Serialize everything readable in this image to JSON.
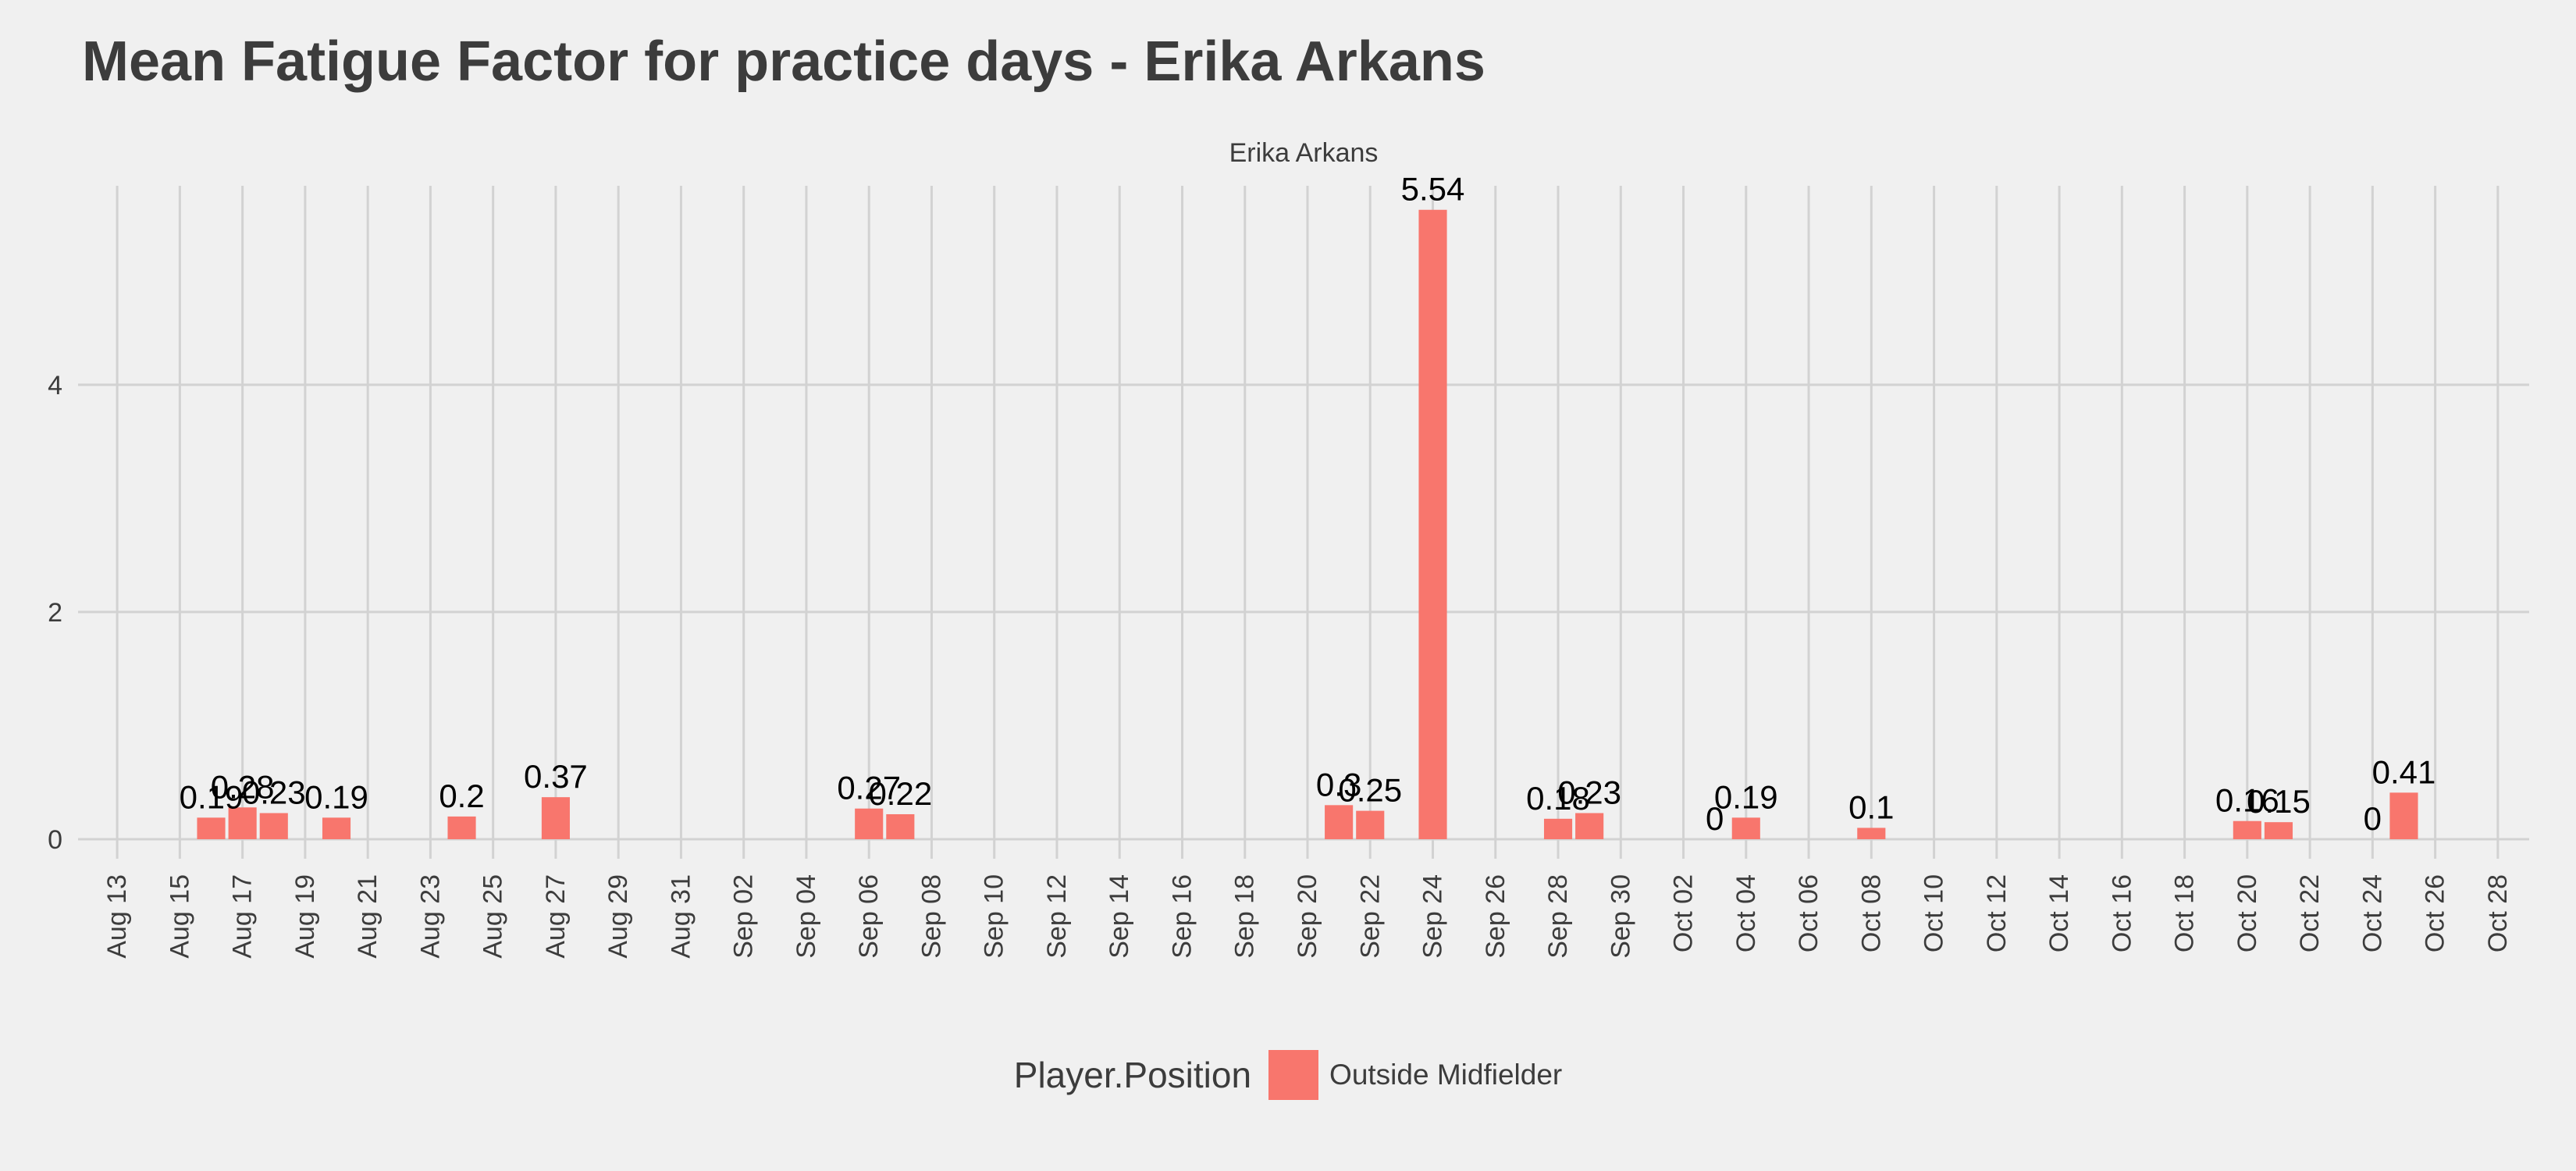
{
  "chart_data": {
    "type": "bar",
    "title": "Mean Fatigue Factor for practice days -  Erika Arkans",
    "facet_label": "Erika Arkans",
    "xlabel": "",
    "ylabel": "",
    "x_range": [
      "2020-08-12",
      "2020-10-29"
    ],
    "ylim": [
      0,
      5.82
    ],
    "y_ticks": [
      0,
      2,
      4
    ],
    "x_tick_dates": [
      "2020-08-13",
      "2020-08-15",
      "2020-08-17",
      "2020-08-19",
      "2020-08-21",
      "2020-08-23",
      "2020-08-25",
      "2020-08-27",
      "2020-08-29",
      "2020-08-31",
      "2020-09-02",
      "2020-09-04",
      "2020-09-06",
      "2020-09-08",
      "2020-09-10",
      "2020-09-12",
      "2020-09-14",
      "2020-09-16",
      "2020-09-18",
      "2020-09-20",
      "2020-09-22",
      "2020-09-24",
      "2020-09-26",
      "2020-09-28",
      "2020-09-30",
      "2020-10-02",
      "2020-10-04",
      "2020-10-06",
      "2020-10-08",
      "2020-10-10",
      "2020-10-12",
      "2020-10-14",
      "2020-10-16",
      "2020-10-18",
      "2020-10-20",
      "2020-10-22",
      "2020-10-24",
      "2020-10-26",
      "2020-10-28"
    ],
    "x_tick_labels": [
      "Aug 13",
      "Aug 15",
      "Aug 17",
      "Aug 19",
      "Aug 21",
      "Aug 23",
      "Aug 25",
      "Aug 27",
      "Aug 29",
      "Aug 31",
      "Sep 02",
      "Sep 04",
      "Sep 06",
      "Sep 08",
      "Sep 10",
      "Sep 12",
      "Sep 14",
      "Sep 16",
      "Sep 18",
      "Sep 20",
      "Sep 22",
      "Sep 24",
      "Sep 26",
      "Sep 28",
      "Sep 30",
      "Oct 02",
      "Oct 04",
      "Oct 06",
      "Oct 08",
      "Oct 10",
      "Oct 12",
      "Oct 14",
      "Oct 16",
      "Oct 18",
      "Oct 20",
      "Oct 22",
      "Oct 24",
      "Oct 26",
      "Oct 28"
    ],
    "grid": true,
    "legend_placement": "bottom",
    "series": [
      {
        "name": "Outside Midfielder",
        "color": "#f8766d",
        "points": [
          {
            "date": "2020-08-16",
            "value": 0.19,
            "label": "0.19"
          },
          {
            "date": "2020-08-17",
            "value": 0.28,
            "label": "0.28"
          },
          {
            "date": "2020-08-18",
            "value": 0.23,
            "label": "0.23"
          },
          {
            "date": "2020-08-20",
            "value": 0.19,
            "label": "0.19"
          },
          {
            "date": "2020-08-24",
            "value": 0.2,
            "label": "0.2"
          },
          {
            "date": "2020-08-27",
            "value": 0.37,
            "label": "0.37"
          },
          {
            "date": "2020-09-06",
            "value": 0.27,
            "label": "0.27"
          },
          {
            "date": "2020-09-07",
            "value": 0.22,
            "label": "0.22"
          },
          {
            "date": "2020-09-21",
            "value": 0.3,
            "label": "0.3"
          },
          {
            "date": "2020-09-22",
            "value": 0.25,
            "label": "0.25"
          },
          {
            "date": "2020-09-24",
            "value": 5.54,
            "label": "5.54"
          },
          {
            "date": "2020-09-28",
            "value": 0.18,
            "label": "0.18"
          },
          {
            "date": "2020-09-29",
            "value": 0.23,
            "label": "0.23"
          },
          {
            "date": "2020-10-03",
            "value": 0,
            "label": "0"
          },
          {
            "date": "2020-10-04",
            "value": 0.19,
            "label": "0.19"
          },
          {
            "date": "2020-10-08",
            "value": 0.1,
            "label": "0.1"
          },
          {
            "date": "2020-10-20",
            "value": 0.16,
            "label": "0.16"
          },
          {
            "date": "2020-10-21",
            "value": 0.15,
            "label": "0.15"
          },
          {
            "date": "2020-10-24",
            "value": 0,
            "label": "0"
          },
          {
            "date": "2020-10-25",
            "value": 0.41,
            "label": "0.41"
          }
        ]
      }
    ]
  },
  "legend": {
    "title": "Player.Position",
    "items": [
      {
        "label": "Outside Midfielder",
        "color": "#f8766d"
      }
    ]
  }
}
